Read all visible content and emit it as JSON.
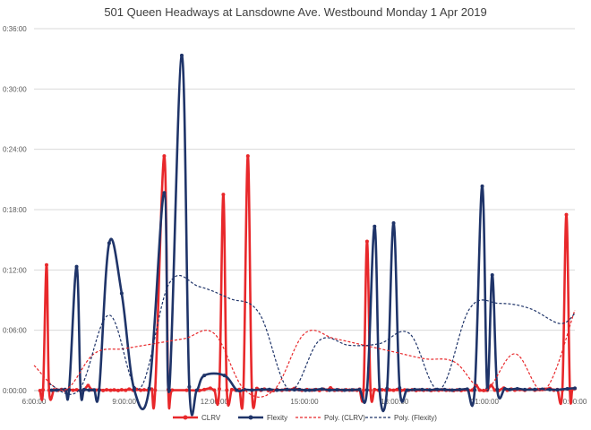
{
  "chart_data": {
    "type": "line",
    "title": "501 Queen  Headways at Lansdowne Ave. Westbound  Monday 1 Apr 2019",
    "xlabel": "",
    "ylabel": "",
    "x_range": [
      "6:00:00",
      "0:00:00"
    ],
    "y_range": [
      "0:00:00",
      "0:36:00"
    ],
    "x_ticks": [
      "6:00:00",
      "9:00:00",
      "12:00:00",
      "15:00:00",
      "18:00:00",
      "21:00:00",
      "0:00:00"
    ],
    "y_ticks": [
      "0:00:00",
      "0:06:00",
      "0:12:00",
      "0:18:00",
      "0:24:00",
      "0:30:00",
      "0:36:00"
    ],
    "grid": "horizontal",
    "legend": "bottom",
    "series": [
      {
        "name": "CLRV",
        "color": "#e8282b",
        "style": "solid-markers",
        "points": [
          [
            "6:12",
            "0:00"
          ],
          [
            "6:18",
            "0:05"
          ],
          [
            "6:25",
            "0:12:30"
          ],
          [
            "6:30",
            "0:03"
          ],
          [
            "6:40",
            "0:05"
          ],
          [
            "6:48",
            "0:02"
          ],
          [
            "6:55",
            "0:07"
          ],
          [
            "7:02",
            "0:01"
          ],
          [
            "7:10",
            "0:06"
          ],
          [
            "7:18",
            "0:02"
          ],
          [
            "7:25",
            "0:05"
          ],
          [
            "7:32",
            "0:01"
          ],
          [
            "7:40",
            "0:05"
          ],
          [
            "7:48",
            "0:00:30"
          ],
          [
            "7:55",
            "0:05"
          ],
          [
            "8:03",
            "0:03"
          ],
          [
            "8:10",
            "0:06"
          ],
          [
            "8:18",
            "0:01"
          ],
          [
            "8:25",
            "0:05"
          ],
          [
            "8:33",
            "0:02"
          ],
          [
            "8:40",
            "0:04"
          ],
          [
            "8:48",
            "0:01"
          ],
          [
            "8:55",
            "0:05"
          ],
          [
            "9:03",
            "0:02"
          ],
          [
            "9:10",
            "0:09"
          ],
          [
            "9:18",
            "0:02"
          ],
          [
            "9:25",
            "0:07"
          ],
          [
            "9:33",
            "0:02"
          ],
          [
            "9:40",
            "0:05"
          ],
          [
            "9:48",
            "0:02"
          ],
          [
            "9:55",
            "0:09"
          ],
          [
            "10:02",
            "0:03"
          ],
          [
            "10:20",
            "0:23:20"
          ],
          [
            "10:28",
            "0:06"
          ],
          [
            "10:36",
            "0:03"
          ],
          [
            "11:05",
            "0:02"
          ],
          [
            "11:30",
            "0:01"
          ],
          [
            "11:40",
            "0:06"
          ],
          [
            "11:52",
            "0:14"
          ],
          [
            "12:00",
            "0:03"
          ],
          [
            "12:10",
            "0:10"
          ],
          [
            "12:18",
            "0:19:30"
          ],
          [
            "12:25",
            "0:03"
          ],
          [
            "12:35",
            "0:06"
          ],
          [
            "12:43",
            "0:02"
          ],
          [
            "12:50",
            "0:07"
          ],
          [
            "12:58",
            "0:02"
          ],
          [
            "13:07",
            "0:23:20"
          ],
          [
            "13:15",
            "0:04"
          ],
          [
            "13:25",
            "0:13"
          ],
          [
            "13:33",
            "0:02"
          ],
          [
            "13:40",
            "0:09"
          ],
          [
            "13:48",
            "0:01"
          ],
          [
            "13:53",
            "0:03"
          ],
          [
            "13:58",
            "0:00"
          ],
          [
            "14:05",
            "0:06"
          ],
          [
            "14:15",
            "0:02"
          ],
          [
            "14:22",
            "0:07"
          ],
          [
            "14:30",
            "0:04"
          ],
          [
            "14:40",
            "0:13"
          ],
          [
            "14:48",
            "0:06"
          ],
          [
            "14:55",
            "0:02"
          ],
          [
            "15:05",
            "0:06"
          ],
          [
            "15:15",
            "0:03"
          ],
          [
            "15:23",
            "0:06"
          ],
          [
            "15:30",
            "0:01"
          ],
          [
            "15:38",
            "0:08"
          ],
          [
            "15:45",
            "0:03"
          ],
          [
            "15:52",
            "0:16"
          ],
          [
            "16:00",
            "0:02"
          ],
          [
            "16:08",
            "0:04"
          ],
          [
            "16:15",
            "0:02"
          ],
          [
            "16:23",
            "0:05"
          ],
          [
            "16:30",
            "0:03"
          ],
          [
            "16:38",
            "0:04"
          ],
          [
            "16:45",
            "0:02"
          ],
          [
            "16:50",
            "0:08"
          ],
          [
            "16:58",
            "0:03"
          ],
          [
            "17:05",
            "0:14:50"
          ],
          [
            "17:12",
            "0:02"
          ],
          [
            "17:20",
            "0:06"
          ],
          [
            "17:28",
            "0:02"
          ],
          [
            "17:35",
            "0:05"
          ],
          [
            "17:42",
            "0:03"
          ],
          [
            "17:50",
            "0:04"
          ],
          [
            "17:58",
            "0:02"
          ],
          [
            "18:05",
            "0:06"
          ],
          [
            "18:13",
            "0:01"
          ],
          [
            "18:20",
            "0:04"
          ],
          [
            "18:28",
            "0:02"
          ],
          [
            "18:35",
            "0:05"
          ],
          [
            "18:43",
            "0:01"
          ],
          [
            "18:50",
            "0:04"
          ],
          [
            "18:58",
            "0:02"
          ],
          [
            "19:05",
            "0:05"
          ],
          [
            "19:13",
            "0:01"
          ],
          [
            "19:20",
            "0:04"
          ],
          [
            "19:28",
            "0:02"
          ],
          [
            "19:35",
            "0:05"
          ],
          [
            "19:43",
            "0:02"
          ],
          [
            "19:50",
            "0:03"
          ],
          [
            "19:58",
            "0:01"
          ],
          [
            "20:05",
            "0:04"
          ],
          [
            "20:13",
            "0:01"
          ],
          [
            "20:20",
            "0:05"
          ],
          [
            "20:28",
            "0:01"
          ],
          [
            "20:35",
            "0:03"
          ],
          [
            "20:43",
            "0:00:30"
          ],
          [
            "20:50",
            "0:03"
          ],
          [
            "20:58",
            "0:01"
          ],
          [
            "21:05",
            "0:02"
          ],
          [
            "21:13",
            "0:00:30"
          ],
          [
            "21:20",
            "0:03"
          ],
          [
            "21:28",
            "0:01"
          ],
          [
            "21:38",
            "0:15"
          ],
          [
            "21:45",
            "0:02"
          ],
          [
            "21:53",
            "0:09"
          ],
          [
            "22:00",
            "0:03"
          ],
          [
            "22:10",
            "0:06"
          ],
          [
            "22:20",
            "0:02"
          ],
          [
            "22:30",
            "0:09"
          ],
          [
            "22:40",
            "0:03"
          ],
          [
            "22:50",
            "0:06"
          ],
          [
            "23:00",
            "0:08"
          ],
          [
            "23:10",
            "0:13"
          ],
          [
            "23:18",
            "0:03"
          ],
          [
            "23:25",
            "0:06"
          ],
          [
            "23:35",
            "0:03"
          ],
          [
            "23:43",
            "0:17:30"
          ],
          [
            "23:50",
            "0:04"
          ],
          [
            "23:55",
            "0:10"
          ],
          [
            "24:00",
            "0:12"
          ]
        ]
      },
      {
        "name": "Flexity",
        "color": "#1f3469",
        "style": "solid-markers",
        "points": [
          [
            "6:35",
            "0:02"
          ],
          [
            "6:45",
            "0:03"
          ],
          [
            "7:02",
            "0:07"
          ],
          [
            "7:10",
            "0:03"
          ],
          [
            "7:25",
            "0:12:20"
          ],
          [
            "7:33",
            "0:01"
          ],
          [
            "7:40",
            "0:06"
          ],
          [
            "7:50",
            "0:03"
          ],
          [
            "8:00",
            "0:04"
          ],
          [
            "8:10",
            "0:02"
          ],
          [
            "8:30",
            "0:14:40"
          ],
          [
            "8:55",
            "0:09:40"
          ],
          [
            "9:20",
            "0:06"
          ],
          [
            "9:50",
            "0:13"
          ],
          [
            "10:20",
            "0:19:40"
          ],
          [
            "10:30",
            "0:02"
          ],
          [
            "10:55",
            "0:33:20"
          ],
          [
            "11:10",
            "0:22"
          ],
          [
            "11:25",
            "0:02"
          ],
          [
            "11:40",
            "0:01:30"
          ],
          [
            "12:20",
            "0:01:30"
          ],
          [
            "12:45",
            "0:02"
          ],
          [
            "13:00",
            "0:06"
          ],
          [
            "13:15",
            "0:03"
          ],
          [
            "13:35",
            "0:06"
          ],
          [
            "13:50",
            "0:07"
          ],
          [
            "14:05",
            "0:03"
          ],
          [
            "14:25",
            "0:06"
          ],
          [
            "14:40",
            "0:05"
          ],
          [
            "14:50",
            "0:06"
          ],
          [
            "15:02",
            "0:02"
          ],
          [
            "15:10",
            "0:03"
          ],
          [
            "15:20",
            "0:04"
          ],
          [
            "15:35",
            "0:09"
          ],
          [
            "15:50",
            "0:03"
          ],
          [
            "16:05",
            "0:05"
          ],
          [
            "16:20",
            "0:03"
          ],
          [
            "16:35",
            "0:04"
          ],
          [
            "16:50",
            "0:06"
          ],
          [
            "17:05",
            "0:04"
          ],
          [
            "17:20",
            "0:16:20"
          ],
          [
            "17:30",
            "0:06"
          ],
          [
            "17:45",
            "0:13"
          ],
          [
            "17:58",
            "0:16:40"
          ],
          [
            "18:10",
            "0:16"
          ],
          [
            "18:25",
            "0:03"
          ],
          [
            "18:40",
            "0:06"
          ],
          [
            "18:55",
            "0:06"
          ],
          [
            "19:10",
            "0:04"
          ],
          [
            "19:25",
            "0:07"
          ],
          [
            "19:40",
            "0:06"
          ],
          [
            "19:55",
            "0:03"
          ],
          [
            "20:10",
            "0:06"
          ],
          [
            "20:25",
            "0:09"
          ],
          [
            "20:40",
            "0:04"
          ],
          [
            "20:55",
            "0:20:20"
          ],
          [
            "21:05",
            "0:11"
          ],
          [
            "21:15",
            "0:11:30"
          ],
          [
            "21:25",
            "0:07"
          ],
          [
            "21:40",
            "0:11"
          ],
          [
            "21:50",
            "0:06"
          ],
          [
            "22:05",
            "0:11"
          ],
          [
            "22:20",
            "0:06"
          ],
          [
            "22:40",
            "0:07"
          ],
          [
            "22:55",
            "0:08"
          ],
          [
            "23:10",
            "0:06"
          ],
          [
            "23:25",
            "0:05"
          ],
          [
            "23:45",
            "0:11"
          ],
          [
            "24:00",
            "0:14"
          ]
        ]
      },
      {
        "name": "Poly. (CLRV)",
        "color": "#e8282b",
        "style": "dashed",
        "points": [
          [
            "6:00",
            "0:02:30"
          ],
          [
            "7:00",
            "0:03"
          ],
          [
            "8:00",
            "0:03:40"
          ],
          [
            "9:00",
            "0:04:10"
          ],
          [
            "10:00",
            "0:04:40"
          ],
          [
            "11:00",
            "0:05:10"
          ],
          [
            "12:00",
            "0:05:40"
          ],
          [
            "13:00",
            "0:06"
          ],
          [
            "14:00",
            "0:06"
          ],
          [
            "15:00",
            "0:05:40"
          ],
          [
            "16:00",
            "0:05:10"
          ],
          [
            "17:00",
            "0:04:30"
          ],
          [
            "18:00",
            "0:03:50"
          ],
          [
            "19:00",
            "0:03:10"
          ],
          [
            "20:00",
            "0:02:50"
          ],
          [
            "21:00",
            "0:03"
          ],
          [
            "22:00",
            "0:03:40"
          ],
          [
            "23:00",
            "0:05"
          ],
          [
            "24:00",
            "0:08:00"
          ]
        ]
      },
      {
        "name": "Poly. (Flexity)",
        "color": "#1f3469",
        "style": "dashed",
        "points": [
          [
            "6:30",
            "0:00:40"
          ],
          [
            "7:30",
            "0:04"
          ],
          [
            "8:30",
            "0:07:30"
          ],
          [
            "9:30",
            "0:10"
          ],
          [
            "10:30",
            "0:10:40"
          ],
          [
            "11:30",
            "0:10:20"
          ],
          [
            "12:30",
            "0:09:10"
          ],
          [
            "13:30",
            "0:07:40"
          ],
          [
            "14:30",
            "0:06"
          ],
          [
            "15:30",
            "0:05:00"
          ],
          [
            "16:30",
            "0:04:30"
          ],
          [
            "17:30",
            "0:04:40"
          ],
          [
            "18:30",
            "0:05:40"
          ],
          [
            "19:30",
            "0:07"
          ],
          [
            "20:30",
            "0:08:10"
          ],
          [
            "21:30",
            "0:08:40"
          ],
          [
            "22:30",
            "0:08:10"
          ],
          [
            "23:30",
            "0:06:40"
          ],
          [
            "24:00",
            "0:07:40"
          ]
        ]
      }
    ]
  }
}
